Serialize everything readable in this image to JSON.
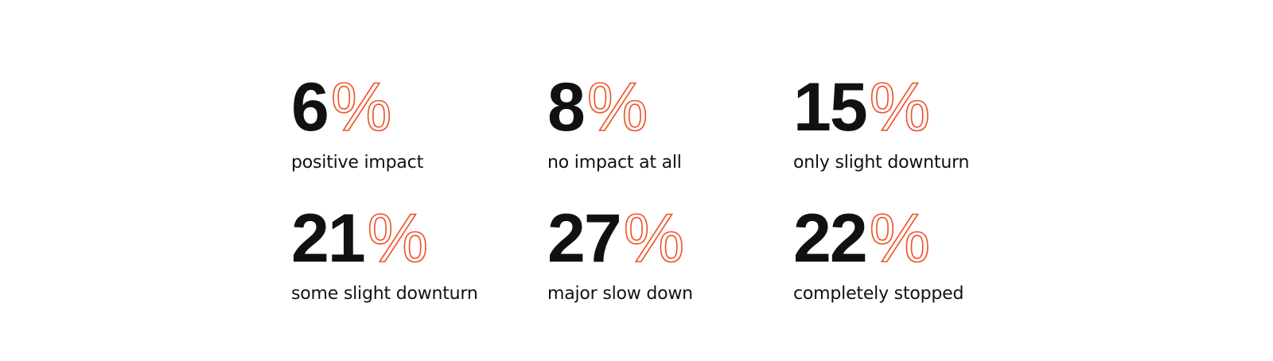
{
  "unit": "%",
  "stats": [
    {
      "number": 6,
      "label": "positive impact"
    },
    {
      "number": 8,
      "label": "no impact at all"
    },
    {
      "number": 15,
      "label": "only slight downturn"
    },
    {
      "number": 21,
      "label": "some slight downturn"
    },
    {
      "number": 27,
      "label": "major slow down"
    },
    {
      "number": 22,
      "label": "completely stopped"
    }
  ]
}
